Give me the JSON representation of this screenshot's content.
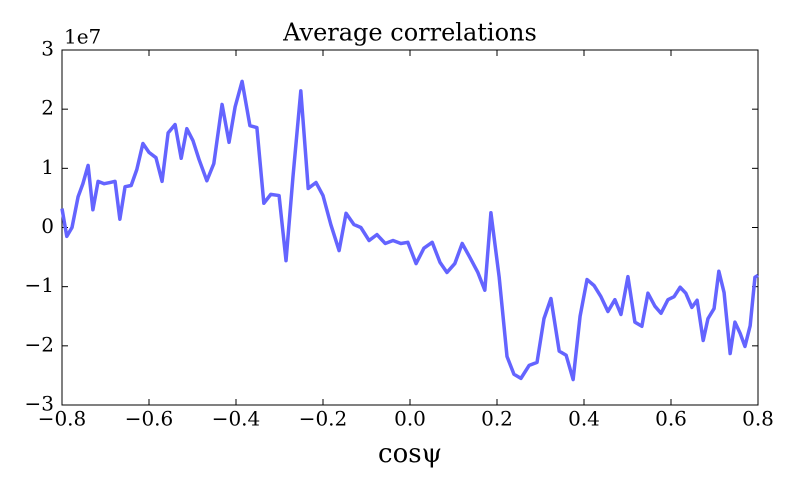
{
  "chart_data": {
    "type": "line",
    "title": "Average correlations",
    "x_label": "cosψ",
    "y_offset_label": "1e7",
    "x": [
      -0.8,
      -0.789,
      -0.777,
      -0.763,
      -0.752,
      -0.74,
      -0.729,
      -0.717,
      -0.703,
      -0.69,
      -0.678,
      -0.667,
      -0.655,
      -0.641,
      -0.628,
      -0.614,
      -0.6,
      -0.584,
      -0.57,
      -0.556,
      -0.54,
      -0.526,
      -0.513,
      -0.499,
      -0.485,
      -0.467,
      -0.451,
      -0.432,
      -0.416,
      -0.402,
      -0.386,
      -0.368,
      -0.352,
      -0.336,
      -0.32,
      -0.301,
      -0.285,
      -0.269,
      -0.251,
      -0.234,
      -0.216,
      -0.2,
      -0.182,
      -0.163,
      -0.147,
      -0.129,
      -0.113,
      -0.094,
      -0.076,
      -0.057,
      -0.039,
      -0.021,
      -0.005,
      0.014,
      0.032,
      0.051,
      0.069,
      0.085,
      0.103,
      0.12,
      0.138,
      0.156,
      0.172,
      0.186,
      0.205,
      0.223,
      0.239,
      0.255,
      0.274,
      0.292,
      0.308,
      0.324,
      0.343,
      0.359,
      0.375,
      0.391,
      0.407,
      0.423,
      0.439,
      0.455,
      0.471,
      0.485,
      0.501,
      0.517,
      0.533,
      0.547,
      0.563,
      0.577,
      0.593,
      0.607,
      0.621,
      0.634,
      0.648,
      0.66,
      0.674,
      0.685,
      0.699,
      0.71,
      0.722,
      0.736,
      0.747,
      0.759,
      0.77,
      0.782,
      0.793,
      0.8
    ],
    "series": [
      {
        "color": "#6464ff",
        "values": [
          0.32,
          -0.15,
          0.0,
          0.52,
          0.74,
          1.05,
          0.3,
          0.78,
          0.74,
          0.76,
          0.78,
          0.14,
          0.69,
          0.71,
          0.98,
          1.42,
          1.27,
          1.18,
          0.78,
          1.6,
          1.74,
          1.17,
          1.67,
          1.47,
          1.15,
          0.79,
          1.08,
          2.08,
          1.44,
          2.04,
          2.47,
          1.72,
          1.69,
          0.41,
          0.56,
          0.54,
          -0.56,
          0.86,
          2.31,
          0.66,
          0.76,
          0.54,
          0.05,
          -0.39,
          0.24,
          0.05,
          0.0,
          -0.22,
          -0.12,
          -0.27,
          -0.22,
          -0.27,
          -0.25,
          -0.61,
          -0.35,
          -0.25,
          -0.59,
          -0.76,
          -0.61,
          -0.27,
          -0.51,
          -0.76,
          -1.06,
          0.25,
          -0.84,
          -2.18,
          -2.48,
          -2.55,
          -2.33,
          -2.28,
          -1.54,
          -1.2,
          -2.09,
          -2.16,
          -2.57,
          -1.5,
          -0.88,
          -0.98,
          -1.17,
          -1.42,
          -1.22,
          -1.47,
          -0.83,
          -1.6,
          -1.67,
          -1.11,
          -1.33,
          -1.45,
          -1.22,
          -1.17,
          -1.01,
          -1.11,
          -1.35,
          -1.23,
          -1.91,
          -1.54,
          -1.37,
          -0.74,
          -1.1,
          -2.13,
          -1.6,
          -1.79,
          -2.01,
          -1.66,
          -0.84,
          -0.81
        ]
      }
    ],
    "xlim": [
      -0.8,
      0.8
    ],
    "xticks": [
      {
        "value": -0.8,
        "label": "−0.8"
      },
      {
        "value": -0.6,
        "label": "−0.6"
      },
      {
        "value": -0.4,
        "label": "−0.4"
      },
      {
        "value": -0.2,
        "label": "−0.2"
      },
      {
        "value": 0,
        "label": "0.0"
      },
      0.2,
      0.4,
      0.6,
      0.8
    ],
    "ylim": [
      -3,
      3
    ],
    "yticks": [
      {
        "value": -3,
        "label": "−3"
      },
      {
        "value": -2,
        "label": "−2"
      },
      {
        "value": -1,
        "label": "−1"
      },
      0,
      1,
      2,
      3
    ]
  }
}
